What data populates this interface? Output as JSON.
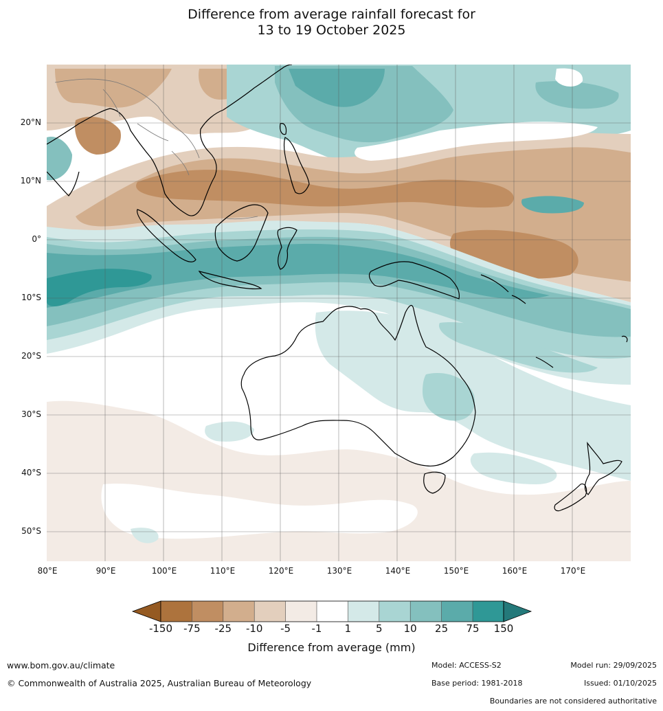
{
  "title": {
    "line1": "Difference from average rainfall forecast for",
    "line2": "13 to 19 October 2025"
  },
  "map": {
    "lat_ticks": [
      "20°N",
      "10°N",
      "0°",
      "10°S",
      "20°S",
      "30°S",
      "40°S",
      "50°S"
    ],
    "lon_ticks": [
      "80°E",
      "90°E",
      "100°E",
      "110°E",
      "120°E",
      "130°E",
      "140°E",
      "150°E",
      "160°E",
      "170°E"
    ]
  },
  "legend": {
    "title": "Difference from average (mm)",
    "tick_labels": [
      "-150",
      "-75",
      "-25",
      "-10",
      "-5",
      "-1",
      "1",
      "5",
      "10",
      "25",
      "75",
      "150"
    ],
    "colors": {
      "under": "#955a22",
      "bins": [
        "#ad733d",
        "#c08e62",
        "#d2ae8d",
        "#e3cfbd",
        "#f3ebe5",
        "#ffffff",
        "#d4e9e8",
        "#a9d5d3",
        "#84c0be",
        "#5babaa",
        "#2f9896"
      ],
      "over": "#24797a"
    }
  },
  "footer": {
    "website": "www.bom.gov.au/climate",
    "copyright": "© Commonwealth of Australia 2025, Australian Bureau of Meteorology",
    "model": "Model: ACCESS-S2",
    "base_period": "Base period: 1981-2018",
    "model_run": "Model run: 29/09/2025",
    "issued": "Issued: 01/10/2025",
    "disclaimer": "Boundaries are not considered authoritative"
  }
}
